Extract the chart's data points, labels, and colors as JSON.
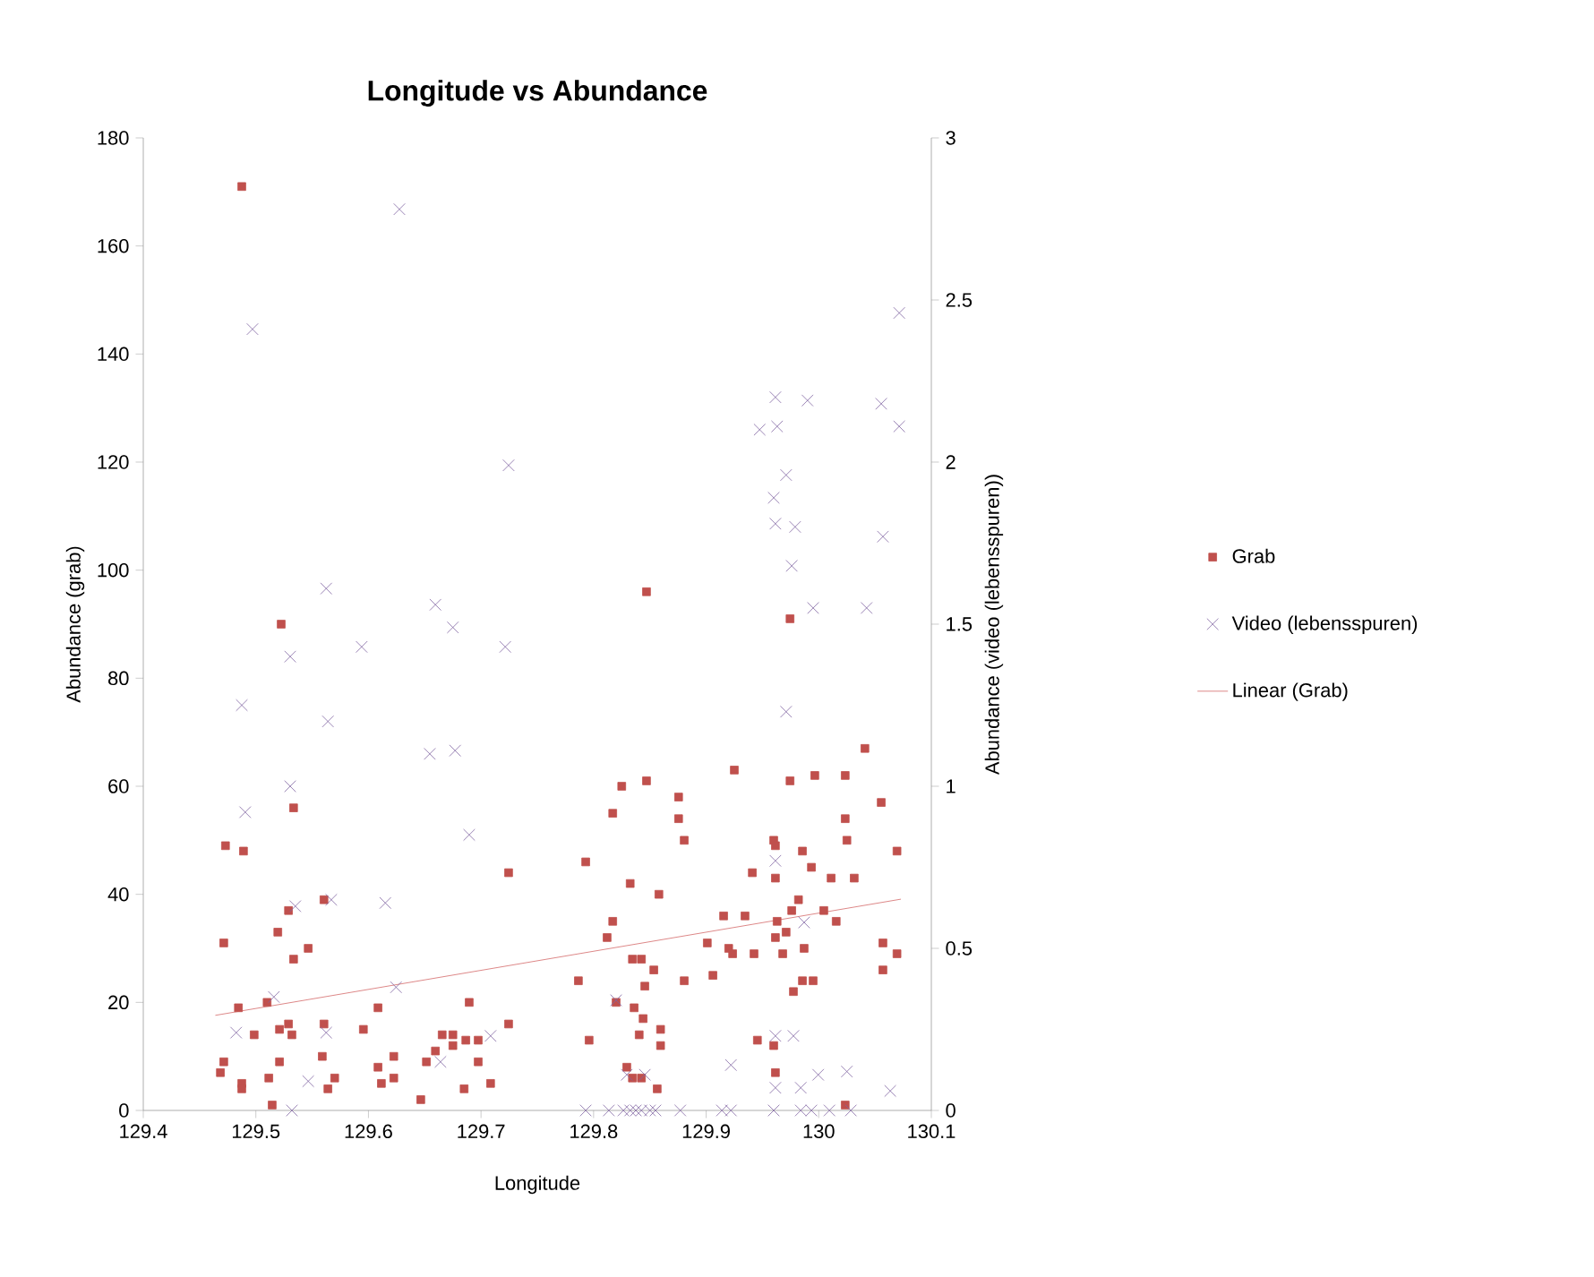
{
  "chart_data": {
    "type": "scatter",
    "title": "Longitude vs Abundance",
    "xlabel": "Longitude",
    "ylabel": "Abundance (grab)",
    "y2label": "Abundance (video (lebensspuren))",
    "xlim": [
      129.4,
      130.1
    ],
    "xticks": [
      129.4,
      129.5,
      129.6,
      129.7,
      129.8,
      129.9,
      130,
      130.1
    ],
    "ylim": [
      0,
      180
    ],
    "yticks": [
      0,
      20,
      40,
      60,
      80,
      100,
      120,
      140,
      160,
      180
    ],
    "y2lim": [
      0,
      3
    ],
    "y2ticks": [
      0,
      0.5,
      1,
      1.5,
      2,
      2.5,
      3
    ],
    "legend": "right",
    "grid": false,
    "series": [
      {
        "name": "Grab",
        "marker": "square",
        "color": "#c0504d",
        "x": [
          129.4875,
          129.5225,
          129.5335,
          129.473,
          129.489,
          129.7245,
          129.5605,
          129.529,
          129.4715,
          129.5195,
          129.5465,
          129.5335,
          129.6895,
          129.4845,
          129.51,
          129.6085,
          129.529,
          129.5605,
          129.7245,
          129.4985,
          129.521,
          129.532,
          129.5955,
          129.6655,
          129.675,
          129.6865,
          129.6975,
          129.675,
          129.4715,
          129.521,
          129.559,
          129.6085,
          129.6225,
          129.6515,
          129.6595,
          129.6975,
          129.4685,
          129.4875,
          129.4875,
          129.5115,
          129.57,
          129.564,
          129.6115,
          129.6225,
          129.685,
          129.7085,
          129.6465,
          129.5145,
          129.847,
          129.9745,
          130.041,
          129.925,
          129.825,
          129.847,
          129.9745,
          129.9965,
          130.0235,
          129.8755,
          129.817,
          129.8755,
          130.0235,
          130.0555,
          129.8805,
          129.96,
          129.9615,
          130.025,
          129.9855,
          130.0695,
          129.793,
          129.9935,
          129.941,
          129.9615,
          130.011,
          130.0315,
          129.8325,
          129.858,
          129.982,
          129.976,
          130.0045,
          129.9155,
          129.9345,
          129.817,
          130.0155,
          129.963,
          129.812,
          129.971,
          129.9615,
          129.901,
          130.057,
          129.92,
          129.9235,
          129.9425,
          129.968,
          129.987,
          130.0695,
          129.8345,
          129.8425,
          129.8535,
          130.057,
          129.906,
          129.7865,
          129.8805,
          129.9855,
          129.995,
          129.8455,
          129.9775,
          129.82,
          129.836,
          129.844,
          129.8595,
          129.8405,
          129.8595,
          129.796,
          129.9455,
          129.96,
          129.8295,
          129.8345,
          129.8425,
          129.9615,
          129.8565,
          130.0235
        ],
        "values": [
          171,
          90,
          56,
          49,
          48,
          44,
          39,
          37,
          31,
          33,
          30,
          28,
          20,
          19,
          20,
          19,
          16,
          16,
          16,
          14,
          15,
          14,
          15,
          14,
          14,
          13,
          13,
          12,
          9,
          9,
          10,
          8,
          10,
          9,
          11,
          9,
          7,
          5,
          4,
          6,
          6,
          4,
          5,
          6,
          4,
          5,
          2,
          1,
          96,
          91,
          67,
          63,
          60,
          61,
          61,
          62,
          62,
          58,
          55,
          54,
          54,
          57,
          50,
          50,
          49,
          50,
          48,
          48,
          46,
          45,
          44,
          43,
          43,
          43,
          42,
          40,
          39,
          37,
          37,
          36,
          36,
          35,
          35,
          35,
          32,
          33,
          32,
          31,
          31,
          30,
          29,
          29,
          29,
          30,
          29,
          28,
          28,
          26,
          26,
          25,
          24,
          24,
          24,
          24,
          23,
          22,
          20,
          19,
          17,
          15,
          14,
          12,
          13,
          13,
          12,
          8,
          6,
          6,
          7,
          4,
          1
        ]
      },
      {
        "name": "Video (lebensspuren)",
        "marker": "cross",
        "axis": "y2",
        "color": "#8064a2",
        "x": [
          129.6275,
          129.497,
          129.7245,
          129.5625,
          129.6595,
          129.675,
          129.5305,
          129.594,
          129.7215,
          129.4875,
          129.564,
          129.6545,
          129.677,
          129.5305,
          129.4905,
          129.6895,
          129.535,
          129.567,
          129.615,
          129.516,
          129.6245,
          129.4825,
          129.5625,
          129.7085,
          129.664,
          129.5465,
          129.532,
          130.0715,
          129.9615,
          129.99,
          130.0555,
          129.9475,
          129.963,
          130.0715,
          129.971,
          129.96,
          129.9615,
          129.979,
          130.057,
          129.976,
          129.995,
          130.0425,
          129.971,
          129.9615,
          129.987,
          129.82,
          129.9775,
          129.9615,
          129.922,
          129.8295,
          129.8455,
          129.9995,
          130.025,
          130.0635,
          129.9615,
          129.984,
          129.793,
          129.8135,
          129.8265,
          129.8325,
          129.8375,
          129.8425,
          129.85,
          129.855,
          129.877,
          129.914,
          129.922,
          129.96,
          129.984,
          129.9935,
          130.0095,
          130.0285
        ],
        "values": [
          2.78,
          2.41,
          1.99,
          1.61,
          1.56,
          1.49,
          1.4,
          1.43,
          1.43,
          1.25,
          1.2,
          1.1,
          1.11,
          1.0,
          0.92,
          0.85,
          0.63,
          0.65,
          0.64,
          0.35,
          0.38,
          0.24,
          0.24,
          0.23,
          0.15,
          0.09,
          0,
          2.46,
          2.2,
          2.19,
          2.18,
          2.1,
          2.11,
          2.11,
          1.96,
          1.89,
          1.81,
          1.8,
          1.77,
          1.68,
          1.55,
          1.55,
          1.23,
          0.77,
          0.58,
          0.34,
          0.23,
          0.23,
          0.14,
          0.11,
          0.11,
          0.11,
          0.12,
          0.06,
          0.07,
          0.07,
          0,
          0,
          0,
          0,
          0,
          0,
          0,
          0,
          0,
          0,
          0,
          0,
          0,
          0,
          0,
          0
        ]
      },
      {
        "name": "Linear (Grab)",
        "type": "line",
        "marker": "none",
        "color": "#d46a6a",
        "x": [
          129.464,
          130.073
        ],
        "values": [
          17.6,
          39.1
        ]
      }
    ]
  }
}
